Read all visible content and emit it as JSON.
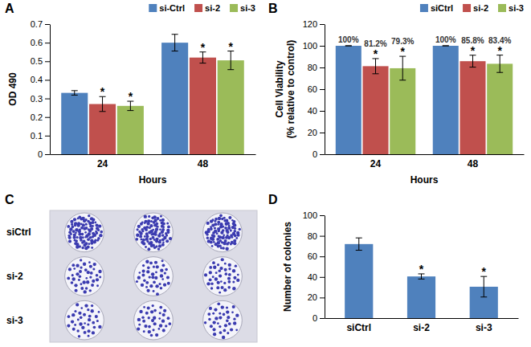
{
  "chart_data": [
    {
      "type": "bar",
      "panel": "A",
      "x_label": "Hours",
      "y_label": "OD 490",
      "categories": [
        "24",
        "48"
      ],
      "series": [
        {
          "name": "si-Ctrl",
          "color": "#4f81bd",
          "values": [
            0.33,
            0.6
          ],
          "errors": [
            0.012,
            0.045
          ]
        },
        {
          "name": "si-2",
          "color": "#c0504d",
          "values": [
            0.27,
            0.52
          ],
          "errors": [
            0.04,
            0.03
          ],
          "annotations": [
            "*",
            "*"
          ]
        },
        {
          "name": "si-3",
          "color": "#9bbb59",
          "values": [
            0.26,
            0.505
          ],
          "errors": [
            0.025,
            0.05
          ],
          "annotations": [
            "*",
            "*"
          ]
        }
      ],
      "ylim": [
        0,
        0.7
      ],
      "yticks": [
        0,
        0.1,
        0.2,
        0.3,
        0.4,
        0.5,
        0.6,
        0.7
      ],
      "grid": false,
      "legend": "top-right"
    },
    {
      "type": "bar",
      "panel": "B",
      "x_label": "Hours",
      "y_label": [
        "Cell Viability",
        "(% relative to control)"
      ],
      "categories": [
        "24",
        "48"
      ],
      "series": [
        {
          "name": "siCtrl",
          "color": "#4f81bd",
          "values": [
            100,
            100
          ],
          "errors": [
            0,
            0
          ],
          "value_labels": [
            "100%",
            "100%"
          ]
        },
        {
          "name": "si-2",
          "color": "#c0504d",
          "values": [
            81.2,
            85.8
          ],
          "errors": [
            7,
            5.5
          ],
          "value_labels": [
            "81.2%",
            "85.8%"
          ],
          "annotations": [
            "*",
            "*"
          ]
        },
        {
          "name": "si-3",
          "color": "#9bbb59",
          "values": [
            79.3,
            83.4
          ],
          "errors": [
            11,
            8
          ],
          "value_labels": [
            "79.3%",
            "83.4%"
          ],
          "annotations": [
            "*",
            "*"
          ]
        }
      ],
      "ylim": [
        0,
        120
      ],
      "yticks": [
        0,
        20,
        40,
        60,
        80,
        100,
        120
      ],
      "grid": false,
      "legend": "top-right",
      "data_labels": true
    },
    {
      "type": "bar",
      "panel": "D",
      "y_label": "Number of colonies",
      "categories": [
        "siCtrl",
        "si-2",
        "si-3"
      ],
      "values": [
        72,
        40.5,
        30.5
      ],
      "errors": [
        6,
        2.5,
        10
      ],
      "annotations": [
        null,
        "*",
        "*"
      ],
      "color": "#4f81bd",
      "ylim": [
        0,
        100
      ],
      "yticks": [
        0,
        20,
        40,
        60,
        80,
        100
      ],
      "grid": false
    }
  ],
  "image_panel": {
    "panel": "C",
    "row_labels": [
      "siCtrl",
      "si-2",
      "si-3"
    ]
  }
}
